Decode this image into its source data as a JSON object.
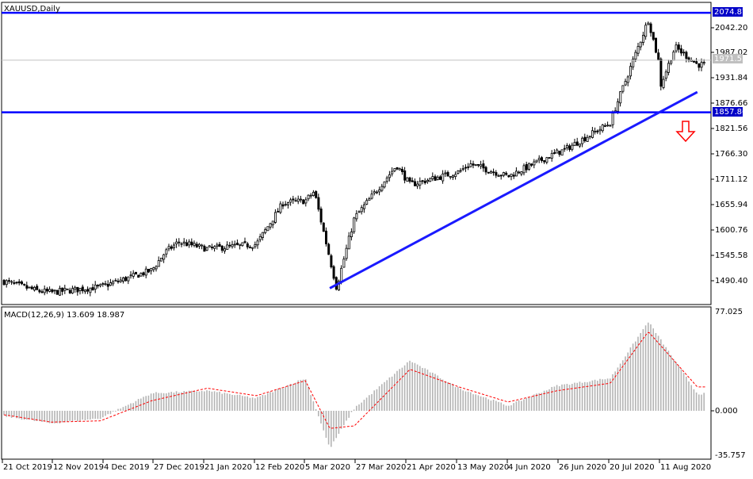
{
  "main_panel": {
    "title": "XAUUSD,Daily",
    "y_ticks": [
      "2042.20",
      "1987.02",
      "1931.84",
      "1876.66",
      "1821.56",
      "1766.30",
      "1711.12",
      "1655.94",
      "1600.76",
      "1545.58",
      "1490.40"
    ],
    "marker_labels": [
      "2074.87",
      "1971.57",
      "1857.86"
    ]
  },
  "macd_panel": {
    "title": "MACD(12,26,9) 13.609 18.987",
    "y_ticks": [
      "77.025",
      "0.000",
      "-35.757"
    ]
  },
  "x_axis": {
    "labels": [
      "21 Oct 2019",
      "12 Nov 2019",
      "4 Dec 2019",
      "27 Dec 2019",
      "21 Jan 2020",
      "12 Feb 2020",
      "5 Mar 2020",
      "27 Mar 2020",
      "21 Apr 2020",
      "13 May 2020",
      "4 Jun 2020",
      "26 Jun 2020",
      "20 Jul 2020",
      "11 Aug 2020"
    ]
  },
  "colors": {
    "candle": "#000000",
    "level_line": "#0000ff",
    "trend_line": "#1a1aff",
    "current_price_line": "#c0c0c0",
    "macd_hist": "#b4b4b4",
    "signal_line": "#ff0000",
    "arrow": "#ff0000",
    "label_bg_blue": "#0000c8",
    "label_bg_gray": "#c0c0c0"
  },
  "chart_data": [
    {
      "type": "candlestick",
      "title": "XAUUSD,Daily",
      "x": [
        "21 Oct 2019",
        "12 Nov 2019",
        "4 Dec 2019",
        "27 Dec 2019",
        "21 Jan 2020",
        "12 Feb 2020",
        "5 Mar 2020",
        "27 Mar 2020",
        "21 Apr 2020",
        "13 May 2020",
        "4 Jun 2020",
        "26 Jun 2020",
        "20 Jul 2020",
        "11 Aug 2020"
      ],
      "close_approx": [
        1490,
        1465,
        1477,
        1513,
        1560,
        1570,
        1665,
        1627,
        1700,
        1728,
        1718,
        1770,
        1835,
        1960
      ],
      "ylim": [
        1450,
        2085
      ],
      "y_ticks": [
        2042.2,
        1987.02,
        1931.84,
        1876.66,
        1821.56,
        1766.3,
        1711.12,
        1655.94,
        1600.76,
        1545.58,
        1490.4
      ],
      "horizontal_lines": [
        2074.87,
        1857.86
      ],
      "current_price": 1971.57,
      "trend_line": {
        "from": {
          "x": "16 Mar 2020",
          "y": 1474
        },
        "to": {
          "x": "28 Aug 2020",
          "y": 1902
        }
      },
      "annotation": "down-arrow"
    },
    {
      "type": "bar+line",
      "title": "MACD(12,26,9) 13.609 18.987",
      "histogram_last": 13.609,
      "signal_last": 18.987,
      "ylim": [
        -35.757,
        77.025
      ],
      "series": [
        {
          "x": "21 Oct 2019",
          "macd": -4,
          "signal": -3
        },
        {
          "x": "12 Nov 2019",
          "macd": -10,
          "signal": -9
        },
        {
          "x": "4 Dec 2019",
          "macd": -6,
          "signal": -8
        },
        {
          "x": "27 Dec 2019",
          "macd": 14,
          "signal": 8
        },
        {
          "x": "21 Jan 2020",
          "macd": 16,
          "signal": 18
        },
        {
          "x": "12 Feb 2020",
          "macd": 10,
          "signal": 12
        },
        {
          "x": "5 Mar 2020",
          "macd": 26,
          "signal": 24
        },
        {
          "x": "16 Mar 2020",
          "macd": -30,
          "signal": -14
        },
        {
          "x": "27 Mar 2020",
          "macd": 2,
          "signal": -12
        },
        {
          "x": "21 Apr 2020",
          "macd": 40,
          "signal": 33
        },
        {
          "x": "13 May 2020",
          "macd": 18,
          "signal": 19
        },
        {
          "x": "4 Jun 2020",
          "macd": 4,
          "signal": 7
        },
        {
          "x": "26 Jun 2020",
          "macd": 20,
          "signal": 16
        },
        {
          "x": "20 Jul 2020",
          "macd": 26,
          "signal": 22
        },
        {
          "x": "6 Aug 2020",
          "macd": 71,
          "signal": 63
        },
        {
          "x": "28 Aug 2020",
          "macd": 13.609,
          "signal": 18.987
        }
      ]
    }
  ]
}
